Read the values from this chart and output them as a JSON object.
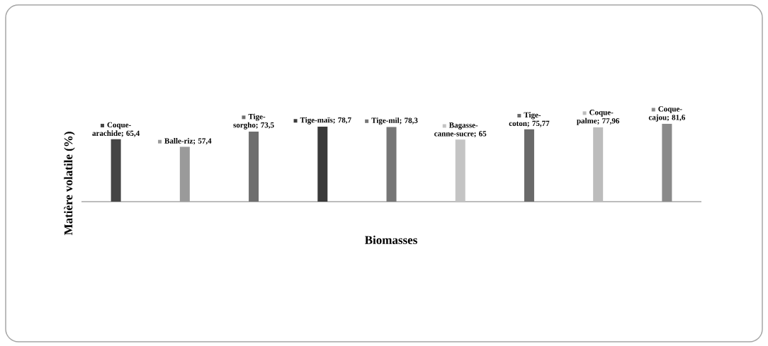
{
  "chart_data": {
    "type": "bar",
    "xlabel": "Biomasses",
    "ylabel": "Matière volatile (%)",
    "categories": [
      null,
      null,
      null,
      null,
      null,
      null,
      null,
      null,
      null
    ],
    "values": [
      65.4,
      57.4,
      73.5,
      78.7,
      78.3,
      65,
      75.77,
      77.96,
      81.6
    ],
    "value_labels": [
      "Coque-arachide; 65,4",
      "Balle-riz; 57,4",
      "Tige-sorgho; 73,5",
      "Tige-maïs; 78,7",
      "Tige-mil; 78,3",
      "Bagasse-canne-sucre; 65",
      "Tige-coton; 75,77",
      "Coque-palme; 77,96",
      "Coque-cajou; 81,6"
    ],
    "colors": [
      "#454545",
      "#9a9a9a",
      "#6e6e6e",
      "#3a3a3a",
      "#767676",
      "#c4c4c4",
      "#6a6a6a",
      "#bcbcbc",
      "#8a8a8a"
    ]
  }
}
